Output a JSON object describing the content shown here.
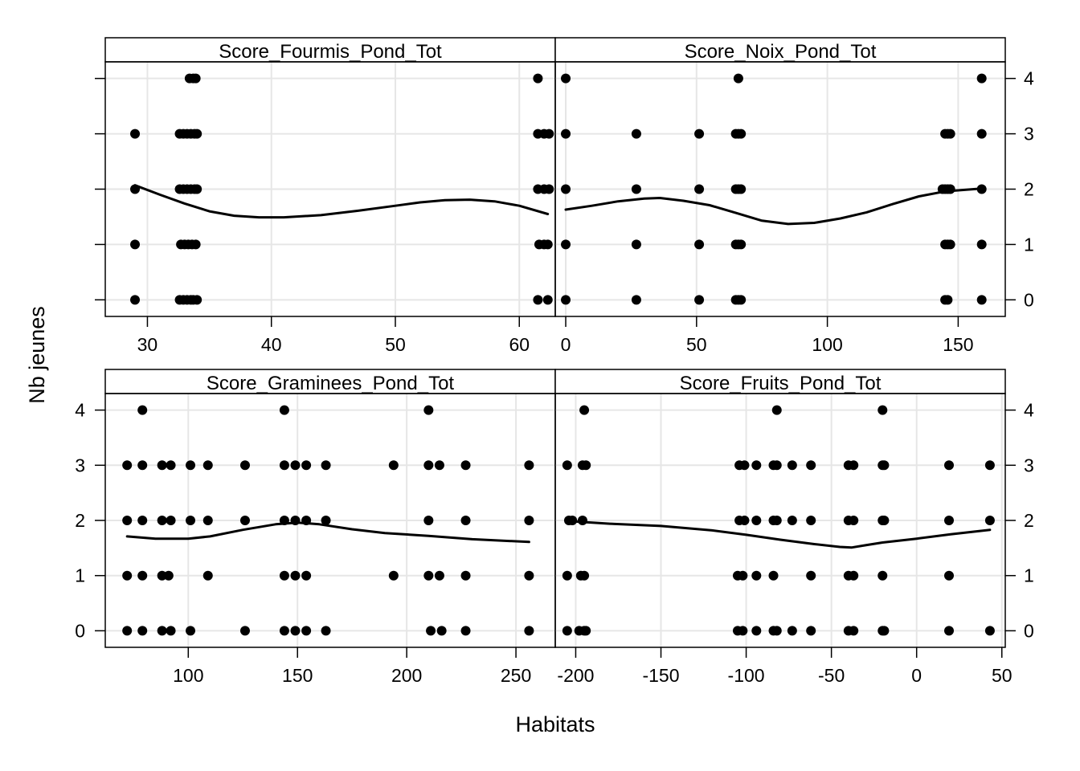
{
  "chart_data": {
    "type": "scatter",
    "layout": "2x2 lattice (xyplot) with loess smoother",
    "xlabel": "Habitats",
    "ylabel": "Nb jeunes",
    "ylim": [
      -0.3,
      4.3
    ],
    "yticks": [
      0,
      1,
      2,
      3,
      4
    ],
    "grid": true,
    "panels": [
      {
        "title": "Score_Fourmis_Pond_Tot",
        "xlim": [
          26.6,
          62.9
        ],
        "xticks": [
          30,
          40,
          50,
          60
        ],
        "points": [
          [
            29,
            0
          ],
          [
            29,
            1
          ],
          [
            29,
            2
          ],
          [
            29,
            3
          ],
          [
            32.6,
            0
          ],
          [
            32.9,
            0
          ],
          [
            33.2,
            0
          ],
          [
            33.5,
            0
          ],
          [
            33.7,
            0
          ],
          [
            34.0,
            0
          ],
          [
            32.7,
            1
          ],
          [
            33.0,
            1
          ],
          [
            33.3,
            1
          ],
          [
            33.6,
            1
          ],
          [
            33.9,
            1
          ],
          [
            32.6,
            2
          ],
          [
            32.9,
            2
          ],
          [
            33.2,
            2
          ],
          [
            33.5,
            2
          ],
          [
            33.8,
            2
          ],
          [
            34.0,
            2
          ],
          [
            32.6,
            3
          ],
          [
            32.9,
            3
          ],
          [
            33.2,
            3
          ],
          [
            33.5,
            3
          ],
          [
            33.8,
            3
          ],
          [
            34.0,
            3
          ],
          [
            33.4,
            4
          ],
          [
            33.7,
            4
          ],
          [
            33.9,
            4
          ],
          [
            61.5,
            0
          ],
          [
            62.3,
            0
          ],
          [
            61.6,
            1
          ],
          [
            62.0,
            1
          ],
          [
            62.3,
            1
          ],
          [
            61.5,
            2
          ],
          [
            62.0,
            2
          ],
          [
            62.4,
            2
          ],
          [
            61.5,
            3
          ],
          [
            62.0,
            3
          ],
          [
            62.4,
            3
          ],
          [
            61.5,
            4
          ]
        ],
        "smooth": [
          [
            29,
            2.07
          ],
          [
            31,
            1.9
          ],
          [
            33,
            1.74
          ],
          [
            35,
            1.6
          ],
          [
            37,
            1.52
          ],
          [
            39,
            1.49
          ],
          [
            41,
            1.49
          ],
          [
            44,
            1.53
          ],
          [
            47,
            1.61
          ],
          [
            50,
            1.7
          ],
          [
            52,
            1.76
          ],
          [
            54,
            1.8
          ],
          [
            56,
            1.81
          ],
          [
            58,
            1.78
          ],
          [
            60,
            1.7
          ],
          [
            62.3,
            1.55
          ]
        ]
      },
      {
        "title": "Score_Noix_Pond_Tot",
        "xlim": [
          -4,
          168
        ],
        "xticks": [
          0,
          50,
          100,
          150
        ],
        "points": [
          [
            0,
            0
          ],
          [
            0,
            1
          ],
          [
            0,
            2
          ],
          [
            0,
            3
          ],
          [
            0,
            4
          ],
          [
            27,
            0
          ],
          [
            27,
            1
          ],
          [
            27,
            2
          ],
          [
            27,
            3
          ],
          [
            51,
            0
          ],
          [
            51,
            1
          ],
          [
            51,
            2
          ],
          [
            51,
            3
          ],
          [
            65,
            0
          ],
          [
            66,
            0
          ],
          [
            67,
            0
          ],
          [
            65,
            1
          ],
          [
            66,
            1
          ],
          [
            67,
            1
          ],
          [
            65,
            2
          ],
          [
            66,
            2
          ],
          [
            67,
            2
          ],
          [
            65,
            3
          ],
          [
            66,
            3
          ],
          [
            67,
            3
          ],
          [
            66,
            4
          ],
          [
            145,
            0
          ],
          [
            146,
            0
          ],
          [
            145,
            1
          ],
          [
            146,
            1
          ],
          [
            147,
            1
          ],
          [
            144,
            2
          ],
          [
            145,
            2
          ],
          [
            146,
            2
          ],
          [
            147,
            2
          ],
          [
            145,
            3
          ],
          [
            146,
            3
          ],
          [
            147,
            3
          ],
          [
            159,
            0
          ],
          [
            159,
            1
          ],
          [
            159,
            2
          ],
          [
            159,
            3
          ],
          [
            159,
            4
          ]
        ],
        "smooth": [
          [
            0,
            1.63
          ],
          [
            10,
            1.7
          ],
          [
            20,
            1.78
          ],
          [
            30,
            1.83
          ],
          [
            36,
            1.84
          ],
          [
            45,
            1.79
          ],
          [
            55,
            1.71
          ],
          [
            65,
            1.57
          ],
          [
            75,
            1.43
          ],
          [
            85,
            1.37
          ],
          [
            95,
            1.39
          ],
          [
            105,
            1.47
          ],
          [
            115,
            1.58
          ],
          [
            125,
            1.73
          ],
          [
            135,
            1.87
          ],
          [
            145,
            1.96
          ],
          [
            159,
            2.01
          ]
        ]
      },
      {
        "title": "Score_Graminees_Pond_Tot",
        "xlim": [
          62,
          268
        ],
        "xticks": [
          100,
          150,
          200,
          250
        ],
        "points": [
          [
            72,
            0
          ],
          [
            79,
            0
          ],
          [
            88,
            0
          ],
          [
            92,
            0
          ],
          [
            101,
            0
          ],
          [
            126,
            0
          ],
          [
            144,
            0
          ],
          [
            149,
            0
          ],
          [
            154,
            0
          ],
          [
            163,
            0
          ],
          [
            211,
            0
          ],
          [
            216,
            0
          ],
          [
            227,
            0
          ],
          [
            256,
            0
          ],
          [
            72,
            1
          ],
          [
            79,
            1
          ],
          [
            88,
            1
          ],
          [
            91,
            1
          ],
          [
            109,
            1
          ],
          [
            144,
            1
          ],
          [
            149,
            1
          ],
          [
            154,
            1
          ],
          [
            194,
            1
          ],
          [
            210,
            1
          ],
          [
            215,
            1
          ],
          [
            227,
            1
          ],
          [
            256,
            1
          ],
          [
            72,
            2
          ],
          [
            79,
            2
          ],
          [
            88,
            2
          ],
          [
            92,
            2
          ],
          [
            101,
            2
          ],
          [
            109,
            2
          ],
          [
            126,
            2
          ],
          [
            144,
            2
          ],
          [
            149,
            2
          ],
          [
            154,
            2
          ],
          [
            163,
            2
          ],
          [
            210,
            2
          ],
          [
            227,
            2
          ],
          [
            256,
            2
          ],
          [
            72,
            3
          ],
          [
            79,
            3
          ],
          [
            88,
            3
          ],
          [
            92,
            3
          ],
          [
            101,
            3
          ],
          [
            109,
            3
          ],
          [
            126,
            3
          ],
          [
            144,
            3
          ],
          [
            149,
            3
          ],
          [
            154,
            3
          ],
          [
            163,
            3
          ],
          [
            194,
            3
          ],
          [
            210,
            3
          ],
          [
            215,
            3
          ],
          [
            227,
            3
          ],
          [
            256,
            3
          ],
          [
            79,
            4
          ],
          [
            144,
            4
          ],
          [
            210,
            4
          ]
        ],
        "smooth": [
          [
            72,
            1.71
          ],
          [
            85,
            1.67
          ],
          [
            100,
            1.67
          ],
          [
            110,
            1.71
          ],
          [
            125,
            1.83
          ],
          [
            140,
            1.93
          ],
          [
            150,
            1.96
          ],
          [
            160,
            1.93
          ],
          [
            175,
            1.84
          ],
          [
            190,
            1.77
          ],
          [
            210,
            1.72
          ],
          [
            230,
            1.66
          ],
          [
            256,
            1.61
          ]
        ]
      },
      {
        "title": "Score_Fruits_Pond_Tot",
        "xlim": [
          -212,
          52
        ],
        "xticks": [
          -200,
          -150,
          -100,
          -50,
          0,
          50
        ],
        "points": [
          [
            -205,
            0
          ],
          [
            -198,
            0
          ],
          [
            -195,
            0
          ],
          [
            -194,
            0
          ],
          [
            -205,
            1
          ],
          [
            -197,
            1
          ],
          [
            -195,
            1
          ],
          [
            -204,
            2
          ],
          [
            -202,
            2
          ],
          [
            -196,
            2
          ],
          [
            -205,
            3
          ],
          [
            -196,
            3
          ],
          [
            -194,
            3
          ],
          [
            -195,
            4
          ],
          [
            -105,
            0
          ],
          [
            -102,
            0
          ],
          [
            -94,
            0
          ],
          [
            -84,
            0
          ],
          [
            -82,
            0
          ],
          [
            -73,
            0
          ],
          [
            -62,
            0
          ],
          [
            -40,
            0
          ],
          [
            -37,
            0
          ],
          [
            -20,
            0
          ],
          [
            -19,
            0
          ],
          [
            -105,
            1
          ],
          [
            -102,
            1
          ],
          [
            -94,
            1
          ],
          [
            -84,
            1
          ],
          [
            -62,
            1
          ],
          [
            -40,
            1
          ],
          [
            -37,
            1
          ],
          [
            -20,
            1
          ],
          [
            -104,
            2
          ],
          [
            -101,
            2
          ],
          [
            -94,
            2
          ],
          [
            -84,
            2
          ],
          [
            -82,
            2
          ],
          [
            -73,
            2
          ],
          [
            -62,
            2
          ],
          [
            -40,
            2
          ],
          [
            -37,
            2
          ],
          [
            -20,
            2
          ],
          [
            -19,
            2
          ],
          [
            -104,
            3
          ],
          [
            -101,
            3
          ],
          [
            -94,
            3
          ],
          [
            -84,
            3
          ],
          [
            -82,
            3
          ],
          [
            -73,
            3
          ],
          [
            -62,
            3
          ],
          [
            -40,
            3
          ],
          [
            -37,
            3
          ],
          [
            -20,
            3
          ],
          [
            -19,
            3
          ],
          [
            -82,
            4
          ],
          [
            -20,
            4
          ],
          [
            19,
            0
          ],
          [
            19,
            1
          ],
          [
            19,
            2
          ],
          [
            19,
            3
          ],
          [
            43,
            0
          ],
          [
            43,
            2
          ],
          [
            43,
            3
          ]
        ],
        "smooth": [
          [
            -205,
            1.99
          ],
          [
            -180,
            1.94
          ],
          [
            -150,
            1.9
          ],
          [
            -120,
            1.82
          ],
          [
            -100,
            1.74
          ],
          [
            -80,
            1.65
          ],
          [
            -60,
            1.57
          ],
          [
            -45,
            1.52
          ],
          [
            -38,
            1.51
          ],
          [
            -30,
            1.55
          ],
          [
            -20,
            1.6
          ],
          [
            0,
            1.67
          ],
          [
            20,
            1.75
          ],
          [
            43,
            1.83
          ]
        ]
      }
    ]
  }
}
